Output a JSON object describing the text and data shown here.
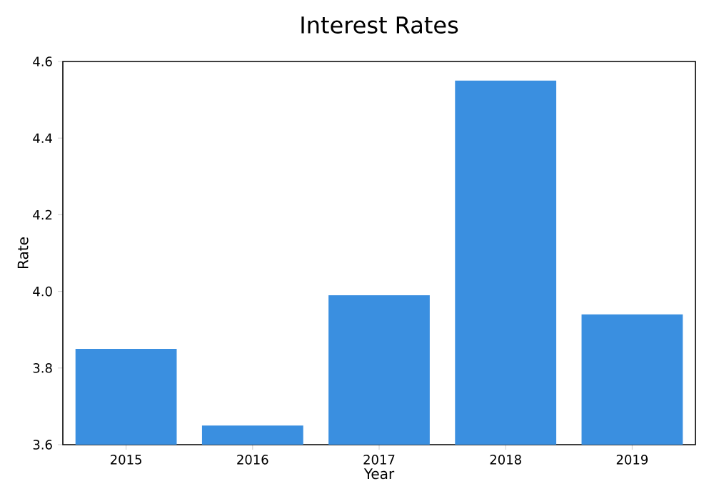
{
  "chart_data": {
    "type": "bar",
    "title": "Interest Rates",
    "xlabel": "Year",
    "ylabel": "Rate",
    "categories": [
      "2015",
      "2016",
      "2017",
      "2018",
      "2019"
    ],
    "values": [
      3.85,
      3.65,
      3.99,
      4.55,
      3.94
    ],
    "color": "#3a8fe0",
    "ylim": [
      3.6,
      4.6
    ],
    "yticks": [
      3.6,
      3.8,
      {
        "value": 4.0,
        "label": "4.0"
      },
      4.2,
      4.4,
      4.6
    ],
    "grid": false
  }
}
